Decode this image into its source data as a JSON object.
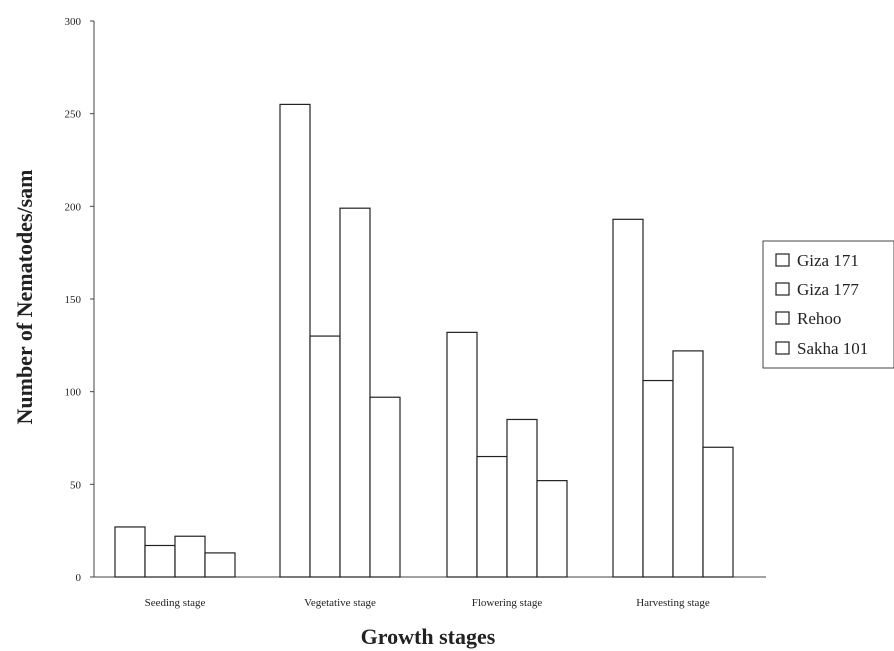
{
  "chart_data": {
    "type": "bar",
    "title": "",
    "xlabel": "Growth stages",
    "ylabel": "Number of Nematodes/sam",
    "ylim": [
      0,
      300
    ],
    "yticks": [
      0,
      50,
      100,
      150,
      200,
      250,
      300
    ],
    "grid": false,
    "legend_position": "right",
    "categories": [
      "Seeding stage",
      "Vegetative stage",
      "Flowering stage",
      "Harvesting stage"
    ],
    "series": [
      {
        "name": "Giza 171",
        "values": [
          27,
          255,
          132,
          193
        ]
      },
      {
        "name": "Giza 177",
        "values": [
          17,
          130,
          65,
          106
        ]
      },
      {
        "name": "Rehoo",
        "values": [
          22,
          199,
          85,
          122
        ]
      },
      {
        "name": "Sakha 101",
        "values": [
          13,
          97,
          52,
          70
        ]
      }
    ],
    "colors": {
      "bar_fill": "#ffffff",
      "bar_stroke": "#222222",
      "axis": "#444444"
    }
  }
}
